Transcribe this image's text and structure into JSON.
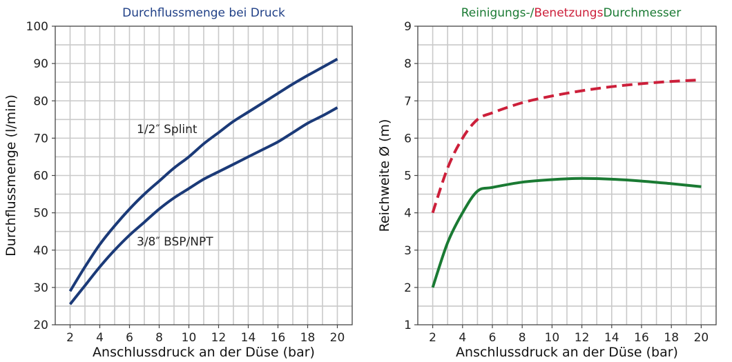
{
  "chart_data": [
    {
      "type": "line",
      "title": "Durchflussmenge bei Druck",
      "title_color": "#1f3f86",
      "xlabel": "Anschlussdruck an der Düse (bar)",
      "ylabel": "Durchflussmenge (l/min)",
      "xlim": [
        1,
        21
      ],
      "ylim": [
        20,
        100
      ],
      "xticks": [
        2,
        4,
        6,
        8,
        10,
        12,
        14,
        16,
        18,
        20
      ],
      "yticks": [
        20,
        30,
        40,
        50,
        60,
        70,
        80,
        90,
        100
      ],
      "grid": true,
      "line_color": "#1b3a78",
      "series": [
        {
          "name": "1/2″ Splint",
          "x": [
            2,
            3,
            4,
            5,
            6,
            7,
            8,
            9,
            10,
            11,
            12,
            13,
            14,
            15,
            16,
            17,
            18,
            19,
            20
          ],
          "y": [
            29,
            35.5,
            41.5,
            46.5,
            51,
            55,
            58.5,
            62,
            65,
            68.5,
            71.5,
            74.5,
            77,
            79.5,
            82,
            84.5,
            86.8,
            89,
            91.2
          ]
        },
        {
          "name": "3/8″ BSP/NPT",
          "x": [
            2,
            3,
            4,
            5,
            6,
            7,
            8,
            9,
            10,
            11,
            12,
            13,
            14,
            15,
            16,
            17,
            18,
            19,
            20
          ],
          "y": [
            25.5,
            30.5,
            35.5,
            40,
            44,
            47.5,
            51,
            54,
            56.5,
            59,
            61,
            63,
            65,
            67,
            69,
            71.5,
            74,
            76,
            78.2
          ]
        }
      ]
    },
    {
      "type": "line",
      "title_parts": [
        {
          "text": "Reinigungs-/",
          "color": "#1a7a33"
        },
        {
          "text": "Benetzungs",
          "color": "#cc1f3a"
        },
        {
          "text": "Durchmesser",
          "color": "#1a7a33"
        }
      ],
      "xlabel": "Anschlussdruck an der Düse (bar)",
      "ylabel": "Reichweite Ø (m)",
      "xlim": [
        1,
        21
      ],
      "ylim": [
        1,
        9
      ],
      "xticks": [
        2,
        4,
        6,
        8,
        10,
        12,
        14,
        16,
        18,
        20
      ],
      "yticks": [
        1,
        2,
        3,
        4,
        5,
        6,
        7,
        8,
        9
      ],
      "grid": true,
      "series": [
        {
          "color": "#cc1f3a",
          "dashed": true,
          "x": [
            2,
            3,
            4,
            5,
            6,
            8,
            10,
            12,
            14,
            16,
            18,
            20
          ],
          "y": [
            4.0,
            5.2,
            6.0,
            6.5,
            6.68,
            6.95,
            7.13,
            7.27,
            7.38,
            7.46,
            7.52,
            7.56
          ]
        },
        {
          "color": "#1a7a33",
          "dashed": false,
          "x": [
            2,
            3,
            4,
            5,
            6,
            8,
            10,
            12,
            14,
            16,
            18,
            20
          ],
          "y": [
            2.0,
            3.2,
            4.0,
            4.58,
            4.68,
            4.82,
            4.89,
            4.92,
            4.9,
            4.85,
            4.78,
            4.7
          ]
        }
      ]
    }
  ]
}
